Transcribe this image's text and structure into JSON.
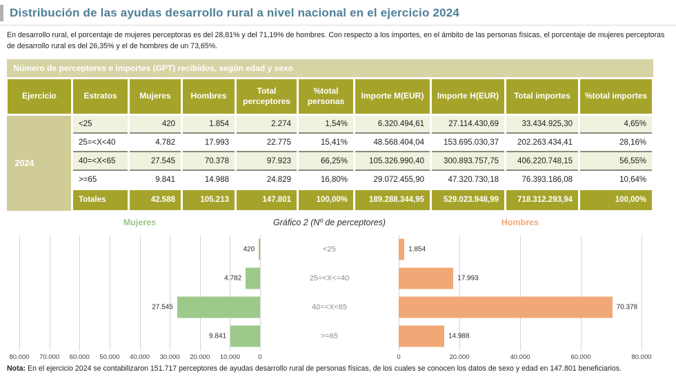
{
  "page": {
    "title": "Distribución de las ayudas desarrollo rural a nivel nacional en el ejercicio 2024",
    "intro": "En desarrollo rural, el porcentaje de mujeres perceptoras es del 28,81% y del 71,19% de hombres. Con respecto a los importes, en el ámbito de las personas físicas, el porcentaje de mujeres perceptoras de desarrollo rural es del 26,35% y el de hombres de un 73,65%.",
    "note_label": "Nota:",
    "note_text": " En el ejercicio 2024 se contabilizaron 151.717 perceptores de ayudas desarrollo rural de personas físicas, de los cuales se conocen los datos de sexo y edad en 147.801 beneficiarios."
  },
  "table": {
    "band_title": "Número de perceptores e importes (GPT) recibidos, según edad y sexo",
    "columns": [
      "Ejercicio",
      "Estratos",
      "Mujeres",
      "Hombres",
      "Total perceptores",
      "%total personas",
      "Importe M(EUR)",
      "Importe H(EUR)",
      "Total importes",
      "%total importes"
    ],
    "ejercicio": "2024",
    "rows": [
      {
        "estratos": "<25",
        "mujeres": "420",
        "hombres": "1.854",
        "total_perceptores": "2.274",
        "pct_personas": "1,54%",
        "importe_m": "6.320.494,61",
        "importe_h": "27.114.430,69",
        "total_importes": "33.434.925,30",
        "pct_importes": "4,65%"
      },
      {
        "estratos": "25=<X<40",
        "mujeres": "4.782",
        "hombres": "17.993",
        "total_perceptores": "22.775",
        "pct_personas": "15,41%",
        "importe_m": "48.568.404,04",
        "importe_h": "153.695.030,37",
        "total_importes": "202.263.434,41",
        "pct_importes": "28,16%"
      },
      {
        "estratos": "40=<X<65",
        "mujeres": "27.545",
        "hombres": "70.378",
        "total_perceptores": "97.923",
        "pct_personas": "66,25%",
        "importe_m": "105.326.990,40",
        "importe_h": "300.893.757,75",
        "total_importes": "406.220.748,15",
        "pct_importes": "56,55%"
      },
      {
        "estratos": ">=65",
        "mujeres": "9.841",
        "hombres": "14.988",
        "total_perceptores": "24.829",
        "pct_personas": "16,80%",
        "importe_m": "29.072.455,90",
        "importe_h": "47.320.730,18",
        "total_importes": "76.393.186,08",
        "pct_importes": "10,64%"
      }
    ],
    "totals": {
      "estratos": "Totales",
      "mujeres": "42.588",
      "hombres": "105.213",
      "total_perceptores": "147.801",
      "pct_personas": "100,00%",
      "importe_m": "189.288.344,95",
      "importe_h": "529.023.948,99",
      "total_importes": "718.312.293,94",
      "pct_importes": "100,00%"
    }
  },
  "chart_data": {
    "type": "bar",
    "orientation": "horizontal-mirrored",
    "title": "Gráfico 2 (Nº de perceptores)",
    "categories": [
      "<25",
      "25=<X<=40",
      "40=<X<65",
      ">=65"
    ],
    "series": [
      {
        "name": "Mujeres",
        "color": "#9dc98b",
        "values": [
          420,
          4782,
          27545,
          9841
        ],
        "labels": [
          "420",
          "4.782",
          "27.545",
          "9.841"
        ]
      },
      {
        "name": "Hombres",
        "color": "#f0a876",
        "values": [
          1854,
          17993,
          70378,
          14988
        ],
        "labels": [
          "1.854",
          "17.993",
          "70.378",
          "14.988"
        ]
      }
    ],
    "xlim": [
      0,
      80000
    ],
    "left_axis_ticks": [
      "80.000",
      "70.000",
      "60.000",
      "50.000",
      "40.000",
      "30.000",
      "20.000",
      "10.000",
      "0"
    ],
    "right_axis_ticks": [
      "0",
      "20.000",
      "40.000",
      "60.000",
      "80.000"
    ],
    "grid": true,
    "legend_position": "top"
  },
  "colors": {
    "title_teal": "#4e7f97",
    "band_olive_light": "#d6d3a4",
    "header_olive": "#a6a32b",
    "ejercicio_khaki": "#d0cc96",
    "row_tint": "#f0f1de",
    "bar_green": "#9dc98b",
    "bar_orange": "#f0a876"
  }
}
